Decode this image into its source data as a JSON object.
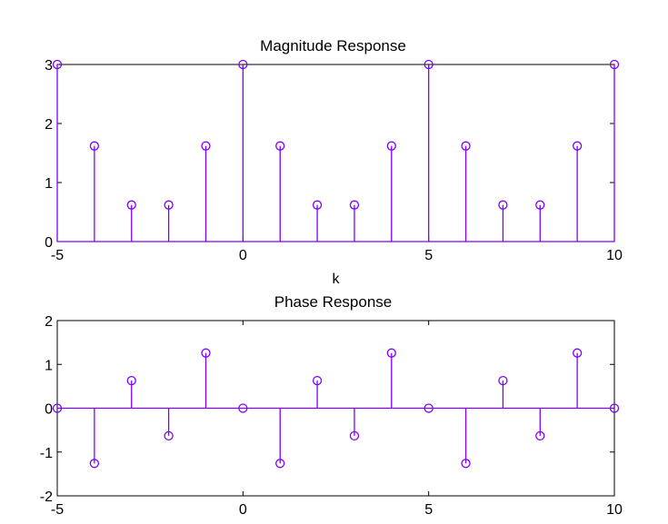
{
  "chart_data": [
    {
      "type": "stem",
      "title": "Magnitude Response",
      "xlabel": "k",
      "ylabel": "",
      "xlim": [
        -5,
        10
      ],
      "ylim": [
        0,
        3
      ],
      "xticks": [
        -5,
        0,
        5,
        10
      ],
      "yticks": [
        0,
        1,
        2,
        3
      ],
      "grid": false,
      "color": "#8000ff",
      "x": [
        -5,
        -4,
        -3,
        -2,
        -1,
        0,
        1,
        2,
        3,
        4,
        5,
        6,
        7,
        8,
        9,
        10
      ],
      "values": [
        3,
        1.62,
        0.62,
        0.62,
        1.62,
        3,
        1.62,
        0.62,
        0.62,
        1.62,
        3,
        1.62,
        0.62,
        0.62,
        1.62,
        3
      ]
    },
    {
      "type": "stem",
      "title": "Phase Response",
      "xlabel": "",
      "ylabel": "",
      "xlim": [
        -5,
        10
      ],
      "ylim": [
        -2,
        2
      ],
      "xticks": [
        -5,
        0,
        5,
        10
      ],
      "yticks": [
        -2,
        -1,
        0,
        1,
        2
      ],
      "grid": false,
      "color": "#8000ff",
      "x": [
        -5,
        -4,
        -3,
        -2,
        -1,
        0,
        1,
        2,
        3,
        4,
        5,
        6,
        7,
        8,
        9,
        10
      ],
      "values": [
        0,
        -1.26,
        0.63,
        -0.63,
        1.26,
        0,
        -1.26,
        0.63,
        -0.63,
        1.26,
        0,
        -1.26,
        0.63,
        -0.63,
        1.26,
        0
      ]
    }
  ]
}
